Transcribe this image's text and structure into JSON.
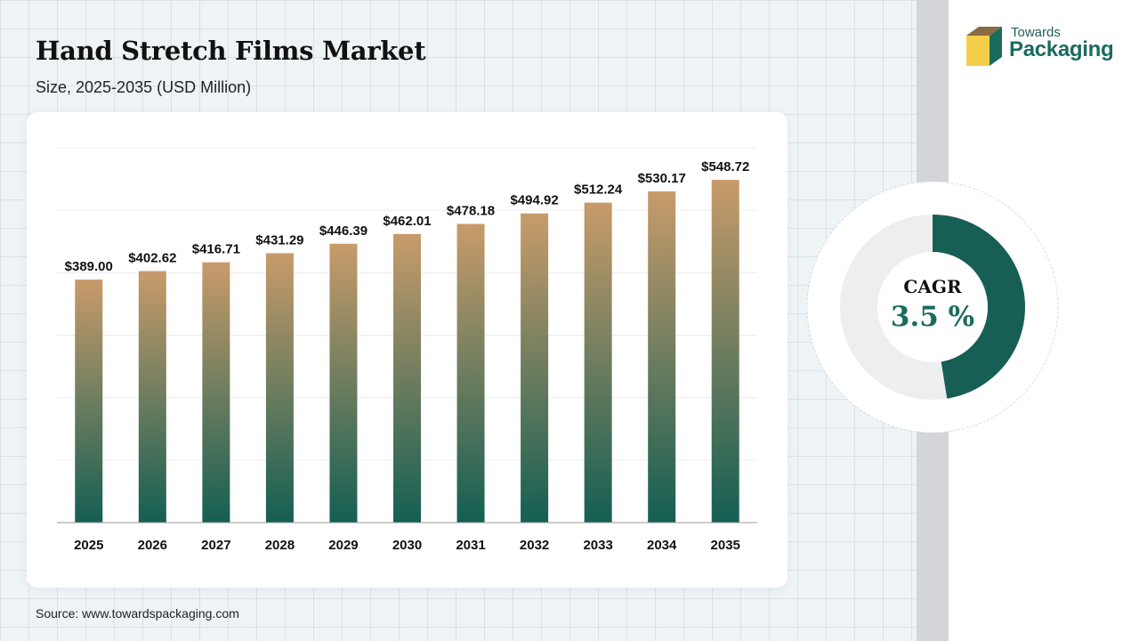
{
  "header": {
    "title": "Hand Stretch Films Market",
    "subtitle": "Size, 2025-2035 (USD Million)"
  },
  "source": "Source: www.towardspackaging.com",
  "logo": {
    "line1": "Towards",
    "line2": "Packaging"
  },
  "cagr": {
    "label": "CAGR",
    "value": "3.5 %",
    "fraction": 0.475,
    "color": "#175f55"
  },
  "colors": {
    "bar_top": "#c89b6a",
    "bar_bottom": "#145f53"
  },
  "chart_data": {
    "type": "bar",
    "title": "Hand Stretch Films Market",
    "subtitle": "Size, 2025-2035 (USD Million)",
    "categories": [
      "2025",
      "2026",
      "2027",
      "2028",
      "2029",
      "2030",
      "2031",
      "2032",
      "2033",
      "2034",
      "2035"
    ],
    "values": [
      389.0,
      402.62,
      416.71,
      431.29,
      446.39,
      462.01,
      478.18,
      494.92,
      512.24,
      530.17,
      548.72
    ],
    "value_labels": [
      "$389.00",
      "$402.62",
      "$416.71",
      "$431.29",
      "$446.39",
      "$462.01",
      "$478.18",
      "$494.92",
      "$512.24",
      "$530.17",
      "$548.72"
    ],
    "ylim": [
      0,
      600
    ],
    "grid": true,
    "xlabel": "",
    "ylabel": ""
  }
}
